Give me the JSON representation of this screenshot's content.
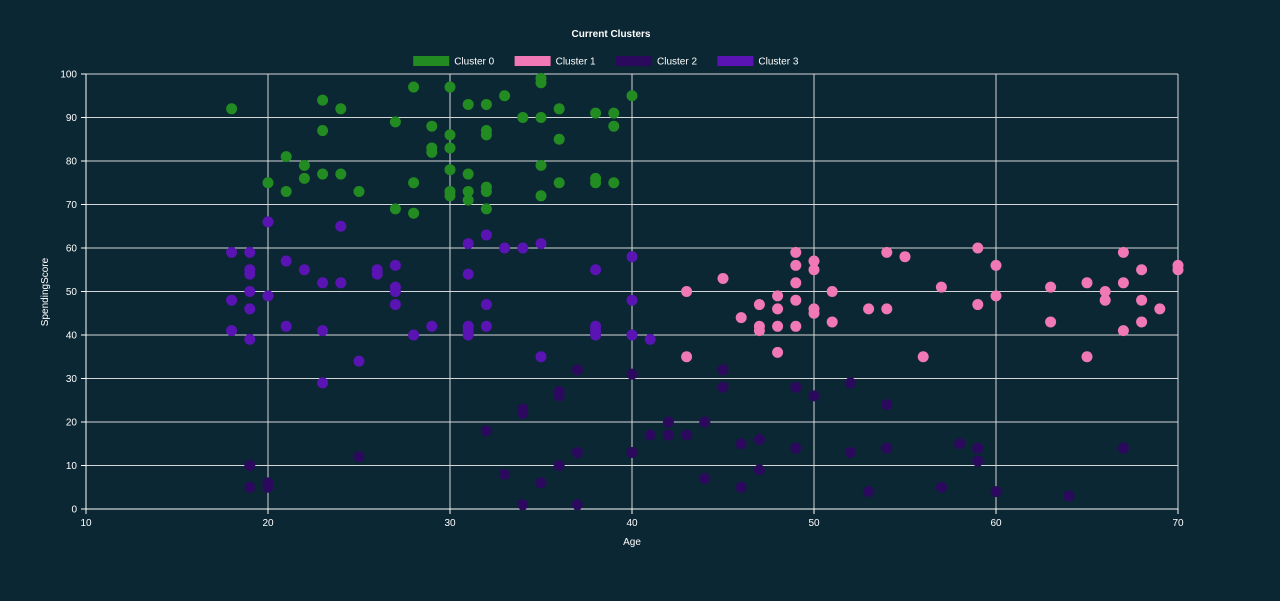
{
  "chart_data": {
    "type": "scatter",
    "title": "Current Clusters",
    "xlabel": "Age",
    "ylabel": "SpendingScore",
    "xlim": [
      10,
      70
    ],
    "ylim": [
      0,
      100
    ],
    "xticks": [
      10,
      20,
      30,
      40,
      50,
      60,
      70
    ],
    "yticks": [
      0,
      10,
      20,
      30,
      40,
      50,
      60,
      70,
      80,
      90,
      100
    ],
    "grid": true,
    "legend_position": "top-center",
    "series": [
      {
        "name": "Cluster 0",
        "color": "#228b22",
        "points": [
          [
            18,
            92
          ],
          [
            20,
            75
          ],
          [
            21,
            81
          ],
          [
            21,
            73
          ],
          [
            22,
            79
          ],
          [
            22,
            76
          ],
          [
            23,
            94
          ],
          [
            23,
            87
          ],
          [
            23,
            77
          ],
          [
            24,
            92
          ],
          [
            24,
            77
          ],
          [
            25,
            73
          ],
          [
            27,
            89
          ],
          [
            27,
            69
          ],
          [
            28,
            97
          ],
          [
            28,
            75
          ],
          [
            28,
            68
          ],
          [
            29,
            88
          ],
          [
            29,
            83
          ],
          [
            29,
            82
          ],
          [
            30,
            97
          ],
          [
            30,
            86
          ],
          [
            30,
            83
          ],
          [
            30,
            78
          ],
          [
            30,
            73
          ],
          [
            30,
            72
          ],
          [
            31,
            93
          ],
          [
            31,
            77
          ],
          [
            31,
            73
          ],
          [
            31,
            71
          ],
          [
            32,
            93
          ],
          [
            32,
            87
          ],
          [
            32,
            86
          ],
          [
            32,
            74
          ],
          [
            32,
            73
          ],
          [
            32,
            69
          ],
          [
            33,
            95
          ],
          [
            34,
            90
          ],
          [
            35,
            99
          ],
          [
            35,
            98
          ],
          [
            35,
            90
          ],
          [
            35,
            79
          ],
          [
            35,
            72
          ],
          [
            36,
            92
          ],
          [
            36,
            85
          ],
          [
            36,
            75
          ],
          [
            38,
            91
          ],
          [
            38,
            76
          ],
          [
            38,
            75
          ],
          [
            39,
            91
          ],
          [
            39,
            88
          ],
          [
            39,
            75
          ],
          [
            40,
            95
          ]
        ]
      },
      {
        "name": "Cluster 1",
        "color": "#f078b4",
        "points": [
          [
            43,
            50
          ],
          [
            43,
            35
          ],
          [
            45,
            53
          ],
          [
            46,
            44
          ],
          [
            47,
            47
          ],
          [
            47,
            42
          ],
          [
            47,
            41
          ],
          [
            48,
            49
          ],
          [
            48,
            46
          ],
          [
            48,
            42
          ],
          [
            48,
            36
          ],
          [
            49,
            59
          ],
          [
            49,
            56
          ],
          [
            49,
            52
          ],
          [
            49,
            48
          ],
          [
            49,
            42
          ],
          [
            50,
            57
          ],
          [
            50,
            55
          ],
          [
            50,
            46
          ],
          [
            50,
            45
          ],
          [
            51,
            50
          ],
          [
            51,
            43
          ],
          [
            53,
            46
          ],
          [
            54,
            59
          ],
          [
            54,
            46
          ],
          [
            55,
            58
          ],
          [
            56,
            35
          ],
          [
            57,
            51
          ],
          [
            59,
            60
          ],
          [
            59,
            47
          ],
          [
            60,
            56
          ],
          [
            60,
            49
          ],
          [
            63,
            51
          ],
          [
            63,
            43
          ],
          [
            65,
            52
          ],
          [
            65,
            35
          ],
          [
            66,
            50
          ],
          [
            66,
            48
          ],
          [
            67,
            59
          ],
          [
            67,
            52
          ],
          [
            67,
            41
          ],
          [
            68,
            55
          ],
          [
            68,
            48
          ],
          [
            68,
            43
          ],
          [
            69,
            46
          ],
          [
            70,
            56
          ],
          [
            70,
            55
          ]
        ]
      },
      {
        "name": "Cluster 2",
        "color": "#2b0a5e",
        "points": [
          [
            19,
            10
          ],
          [
            19,
            5
          ],
          [
            20,
            6
          ],
          [
            20,
            5
          ],
          [
            25,
            12
          ],
          [
            32,
            18
          ],
          [
            33,
            8
          ],
          [
            34,
            23
          ],
          [
            34,
            22
          ],
          [
            34,
            1
          ],
          [
            35,
            6
          ],
          [
            36,
            27
          ],
          [
            36,
            26
          ],
          [
            36,
            10
          ],
          [
            37,
            32
          ],
          [
            37,
            13
          ],
          [
            37,
            1
          ],
          [
            40,
            31
          ],
          [
            40,
            13
          ],
          [
            41,
            17
          ],
          [
            42,
            20
          ],
          [
            42,
            17
          ],
          [
            43,
            17
          ],
          [
            44,
            20
          ],
          [
            44,
            7
          ],
          [
            45,
            32
          ],
          [
            45,
            28
          ],
          [
            46,
            15
          ],
          [
            46,
            5
          ],
          [
            47,
            16
          ],
          [
            47,
            9
          ],
          [
            49,
            28
          ],
          [
            49,
            14
          ],
          [
            50,
            26
          ],
          [
            52,
            29
          ],
          [
            52,
            13
          ],
          [
            53,
            4
          ],
          [
            54,
            24
          ],
          [
            54,
            14
          ],
          [
            57,
            5
          ],
          [
            58,
            15
          ],
          [
            59,
            14
          ],
          [
            59,
            11
          ],
          [
            60,
            4
          ],
          [
            64,
            3
          ],
          [
            67,
            14
          ]
        ]
      },
      {
        "name": "Cluster 3",
        "color": "#5a14b4",
        "points": [
          [
            18,
            59
          ],
          [
            18,
            48
          ],
          [
            18,
            41
          ],
          [
            19,
            59
          ],
          [
            19,
            55
          ],
          [
            19,
            54
          ],
          [
            19,
            50
          ],
          [
            19,
            46
          ],
          [
            19,
            39
          ],
          [
            20,
            66
          ],
          [
            20,
            49
          ],
          [
            21,
            57
          ],
          [
            21,
            42
          ],
          [
            22,
            55
          ],
          [
            23,
            52
          ],
          [
            23,
            41
          ],
          [
            23,
            29
          ],
          [
            24,
            65
          ],
          [
            24,
            52
          ],
          [
            25,
            34
          ],
          [
            26,
            55
          ],
          [
            26,
            54
          ],
          [
            27,
            56
          ],
          [
            27,
            51
          ],
          [
            27,
            50
          ],
          [
            27,
            47
          ],
          [
            28,
            40
          ],
          [
            29,
            42
          ],
          [
            31,
            61
          ],
          [
            31,
            54
          ],
          [
            31,
            42
          ],
          [
            31,
            41
          ],
          [
            31,
            40
          ],
          [
            32,
            63
          ],
          [
            32,
            47
          ],
          [
            32,
            42
          ],
          [
            33,
            60
          ],
          [
            34,
            60
          ],
          [
            35,
            61
          ],
          [
            35,
            35
          ],
          [
            38,
            55
          ],
          [
            38,
            42
          ],
          [
            38,
            41
          ],
          [
            38,
            40
          ],
          [
            40,
            58
          ],
          [
            40,
            48
          ],
          [
            40,
            40
          ],
          [
            41,
            39
          ]
        ]
      }
    ]
  }
}
